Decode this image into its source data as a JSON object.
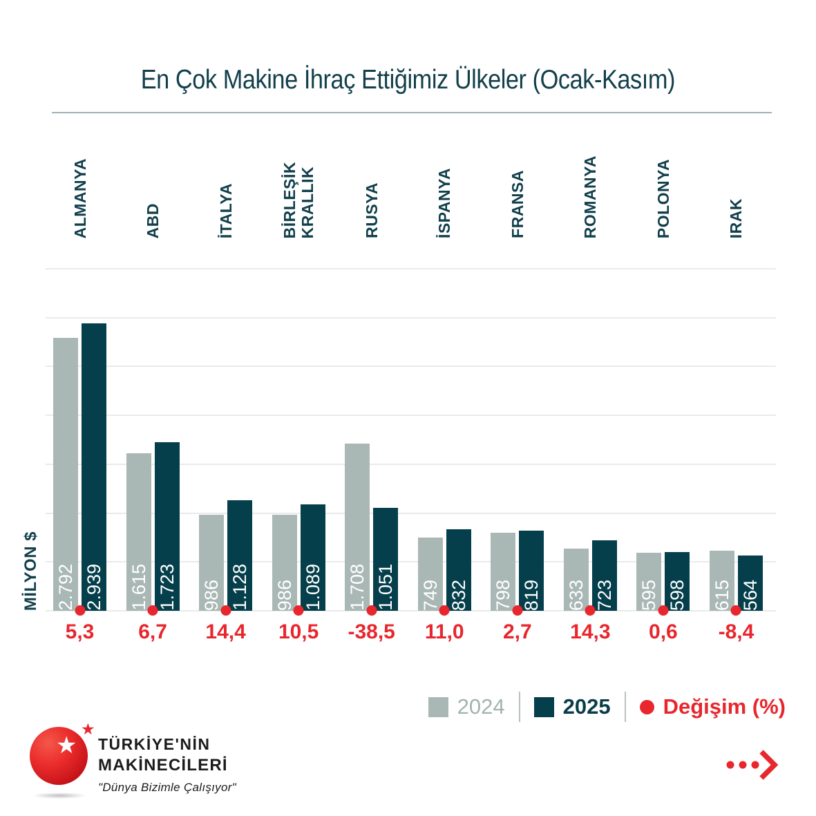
{
  "title": "En Çok Makine İhraç Ettiğimiz Ülkeler (Ocak-Kasım)",
  "chart_data": {
    "type": "bar",
    "title": "En Çok Makine İhraç Ettiğimiz Ülkeler (Ocak-Kasım)",
    "unit": "MİLYON $",
    "ylabel": "MİLYON $",
    "xlabel": "",
    "ylim": [
      0,
      3500
    ],
    "grid_step": 500,
    "grid": true,
    "legend_position": "bottom-right",
    "categories": [
      "ALMANYA",
      "ABD",
      "İTALYA",
      "BİRLEŞİK KRALLIK",
      "RUSYA",
      "İSPANYA",
      "FRANSA",
      "ROMANYA",
      "POLONYA",
      "IRAK"
    ],
    "series": [
      {
        "name": "2024",
        "color": "#a9b8b5",
        "values": [
          2792,
          1615,
          986,
          986,
          1708,
          749,
          798,
          633,
          595,
          615
        ],
        "labels": [
          "2.792",
          "1.615",
          "986",
          "986",
          "1.708",
          "749",
          "798",
          "633",
          "595",
          "615"
        ]
      },
      {
        "name": "2025",
        "color": "#053f4b",
        "values": [
          2939,
          1723,
          1128,
          1089,
          1051,
          832,
          819,
          723,
          598,
          564
        ],
        "labels": [
          "2.939",
          "1.723",
          "1.128",
          "1.089",
          "1.051",
          "832",
          "819",
          "723",
          "598",
          "564"
        ]
      }
    ],
    "changes": [
      5.3,
      6.7,
      14.4,
      10.5,
      -38.5,
      11.0,
      2.7,
      14.3,
      0.6,
      -8.4
    ],
    "changes_label": [
      "5,3",
      "6,7",
      "14,4",
      "10,5",
      "-38,5",
      "11,0",
      "2,7",
      "14,3",
      "0,6",
      "-8,4"
    ]
  },
  "legend": {
    "s2024": "2024",
    "s2025": "2025",
    "change": "Değişim (%)"
  },
  "footer": {
    "brand_line1": "TÜRKİYE'NİN",
    "brand_line2": "MAKİNECİLERİ",
    "tagline": "\"Dünya Bizimle Çalışıyor\""
  },
  "icons": {
    "logo_star_white": "★",
    "logo_star_red": "★"
  },
  "colors": {
    "bar_2024": "#a9b8b5",
    "bar_2025": "#053f4b",
    "accent_red": "#e8262d",
    "title_teal": "#113f4b",
    "gridline": "#e8ebeb"
  }
}
